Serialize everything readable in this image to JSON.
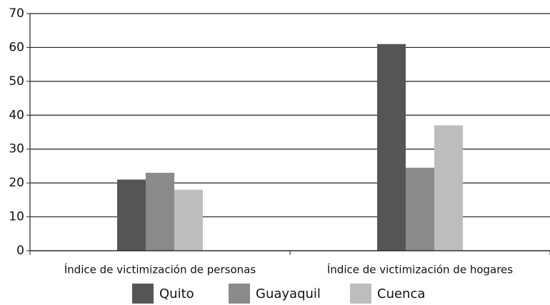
{
  "chart_data": {
    "type": "bar",
    "categories": [
      "Índice de victimización de personas",
      "Índice de victimización de hogares"
    ],
    "series": [
      {
        "name": "Quito",
        "color": "#555555",
        "values": [
          21,
          61
        ]
      },
      {
        "name": "Guayaquil",
        "color": "#8a8a8a",
        "values": [
          23,
          24.5
        ]
      },
      {
        "name": "Cuenca",
        "color": "#bdbdbd",
        "values": [
          18,
          37
        ]
      }
    ],
    "ylim": [
      0,
      70
    ],
    "yticks": [
      0,
      10,
      20,
      30,
      40,
      50,
      60,
      70
    ],
    "grid": true,
    "legend": "bottom"
  }
}
